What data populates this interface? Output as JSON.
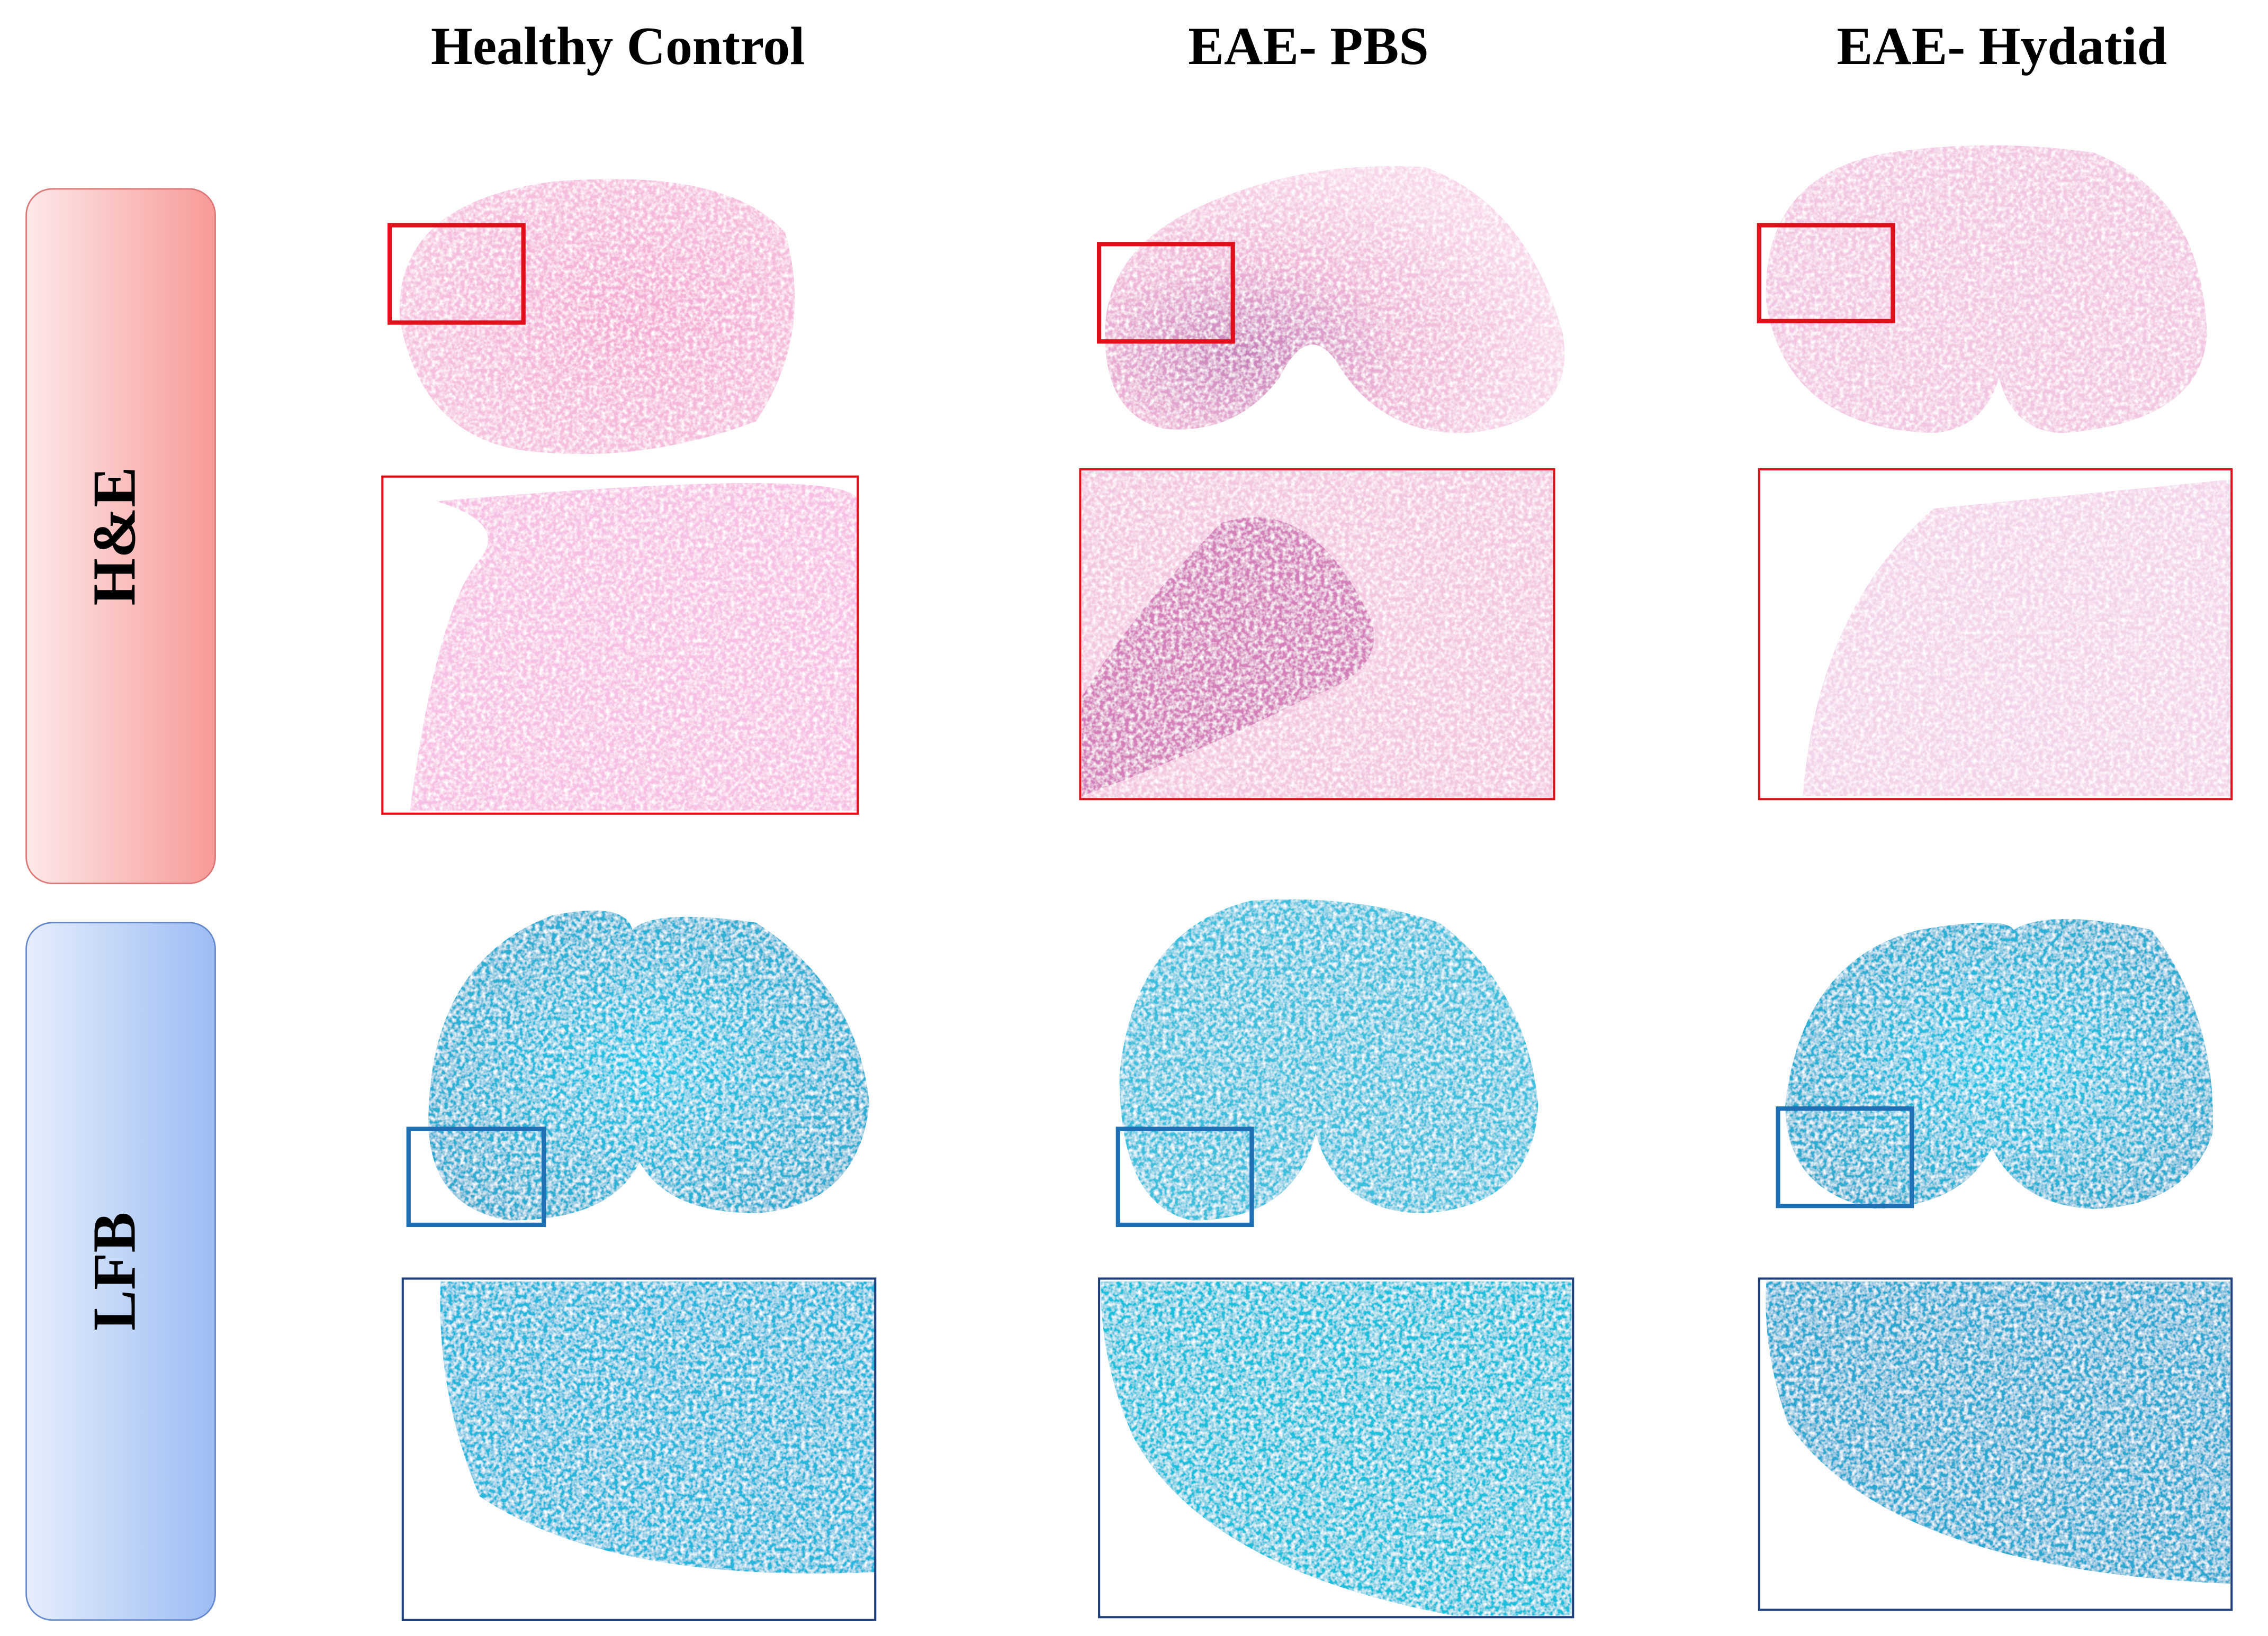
{
  "headers": [
    "Healthy Control",
    "EAE- PBS",
    "EAE- Hydatid"
  ],
  "rows": [
    "H&E",
    "LFB"
  ]
}
